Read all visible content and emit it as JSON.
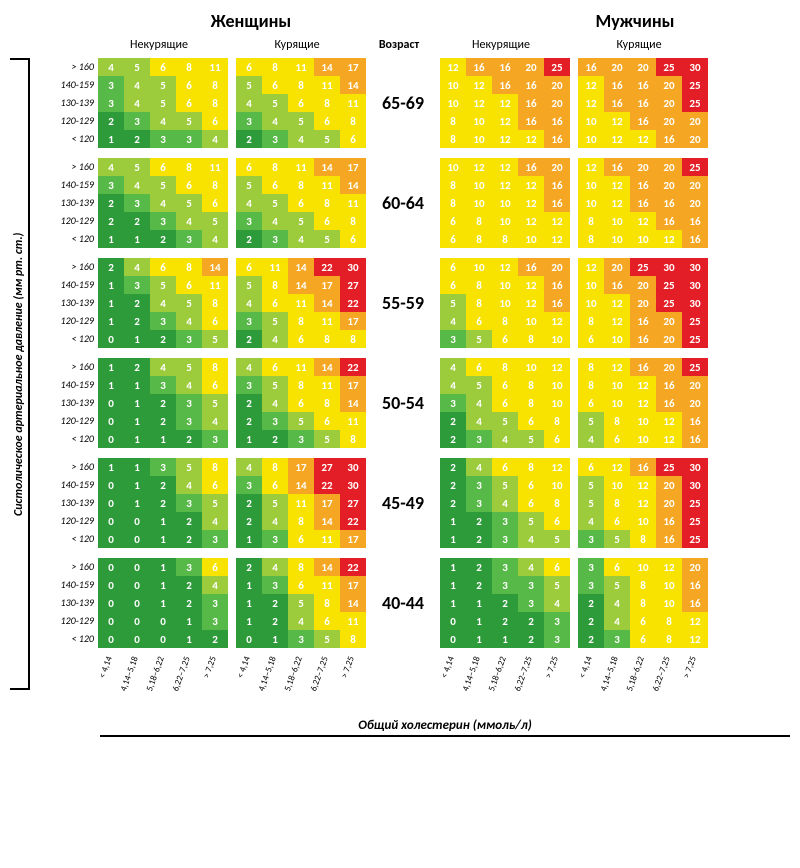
{
  "labels": {
    "women": "Женщины",
    "men": "Мужчины",
    "nonsmokers": "Некурящие",
    "smokers": "Курящие",
    "age": "Возраст",
    "y_axis": "Систолическое артериальное давление (мм рт. ст.)",
    "x_axis": "Общий холестерин (ммоль/л)"
  },
  "bp_rows": [
    "> 160",
    "140-159",
    "130-139",
    "120-129",
    "< 120"
  ],
  "chol_cols": [
    "< 4,14",
    "4,14–5,18",
    "5,18–6,22",
    "6,22–7,25",
    "> 7,25"
  ],
  "age_bands": [
    "65-69",
    "60-64",
    "55-59",
    "50-54",
    "45-49",
    "40-44"
  ],
  "colors": {
    "dark_green": "#2e9b3b",
    "green": "#57b947",
    "light_green": "#9ccc3c",
    "yellow": "#f8e300",
    "orange": "#f5a623",
    "red": "#e41e26",
    "text_color": "#ffffff"
  },
  "color_thresholds": [
    {
      "max": 2,
      "color": "dark_green"
    },
    {
      "max": 3,
      "color": "green"
    },
    {
      "max": 5,
      "color": "light_green"
    },
    {
      "max": 12,
      "color": "yellow"
    },
    {
      "max": 20,
      "color": "orange"
    },
    {
      "max": 999,
      "color": "red"
    }
  ],
  "cell_font_size": 11,
  "cell_font_weight": "bold",
  "data": {
    "65-69": {
      "women_nonsmoke": [
        [
          4,
          5,
          6,
          8,
          11
        ],
        [
          3,
          4,
          5,
          6,
          8
        ],
        [
          3,
          4,
          5,
          6,
          8
        ],
        [
          2,
          3,
          4,
          5,
          6
        ],
        [
          1,
          2,
          3,
          3,
          4
        ]
      ],
      "women_smoke": [
        [
          6,
          8,
          11,
          14,
          17
        ],
        [
          5,
          6,
          8,
          11,
          14
        ],
        [
          4,
          5,
          6,
          8,
          11
        ],
        [
          3,
          4,
          5,
          6,
          8
        ],
        [
          2,
          3,
          4,
          5,
          6
        ]
      ],
      "men_nonsmoke": [
        [
          12,
          16,
          16,
          20,
          25
        ],
        [
          10,
          12,
          16,
          16,
          20
        ],
        [
          10,
          12,
          12,
          16,
          20
        ],
        [
          8,
          10,
          12,
          16,
          16
        ],
        [
          8,
          10,
          12,
          12,
          16
        ]
      ],
      "men_smoke": [
        [
          16,
          20,
          20,
          25,
          30
        ],
        [
          12,
          16,
          16,
          20,
          25
        ],
        [
          12,
          16,
          16,
          20,
          25
        ],
        [
          10,
          12,
          16,
          20,
          20
        ],
        [
          10,
          12,
          12,
          16,
          20
        ]
      ]
    },
    "60-64": {
      "women_nonsmoke": [
        [
          4,
          5,
          6,
          8,
          11
        ],
        [
          3,
          4,
          5,
          6,
          8
        ],
        [
          2,
          3,
          4,
          5,
          6
        ],
        [
          2,
          2,
          3,
          4,
          5
        ],
        [
          1,
          1,
          2,
          3,
          4
        ]
      ],
      "women_smoke": [
        [
          6,
          8,
          11,
          14,
          17
        ],
        [
          5,
          6,
          8,
          11,
          14
        ],
        [
          4,
          5,
          6,
          8,
          11
        ],
        [
          3,
          4,
          5,
          6,
          8
        ],
        [
          2,
          3,
          4,
          5,
          6
        ]
      ],
      "men_nonsmoke": [
        [
          10,
          12,
          12,
          16,
          20
        ],
        [
          8,
          10,
          12,
          12,
          16
        ],
        [
          8,
          10,
          10,
          12,
          16
        ],
        [
          6,
          8,
          10,
          12,
          12
        ],
        [
          6,
          8,
          8,
          10,
          12
        ]
      ],
      "men_smoke": [
        [
          12,
          16,
          20,
          20,
          25
        ],
        [
          10,
          12,
          16,
          20,
          20
        ],
        [
          10,
          12,
          16,
          16,
          20
        ],
        [
          8,
          10,
          12,
          16,
          16
        ],
        [
          8,
          10,
          10,
          12,
          16
        ]
      ]
    },
    "55-59": {
      "women_nonsmoke": [
        [
          2,
          4,
          6,
          8,
          14
        ],
        [
          1,
          3,
          5,
          6,
          11
        ],
        [
          1,
          2,
          4,
          5,
          8
        ],
        [
          1,
          2,
          3,
          4,
          6
        ],
        [
          0,
          1,
          2,
          3,
          5
        ]
      ],
      "women_smoke": [
        [
          6,
          11,
          14,
          22,
          30
        ],
        [
          5,
          8,
          14,
          17,
          27
        ],
        [
          4,
          6,
          11,
          14,
          22
        ],
        [
          3,
          5,
          8,
          11,
          17
        ],
        [
          2,
          4,
          6,
          8,
          8
        ]
      ],
      "men_nonsmoke": [
        [
          6,
          10,
          12,
          16,
          20
        ],
        [
          6,
          8,
          10,
          12,
          16
        ],
        [
          5,
          8,
          10,
          12,
          16
        ],
        [
          4,
          6,
          8,
          10,
          12
        ],
        [
          3,
          5,
          6,
          8,
          10
        ]
      ],
      "men_smoke": [
        [
          12,
          20,
          25,
          30,
          30
        ],
        [
          10,
          16,
          20,
          25,
          30
        ],
        [
          10,
          12,
          20,
          25,
          30
        ],
        [
          8,
          12,
          16,
          20,
          25
        ],
        [
          6,
          10,
          16,
          20,
          25
        ]
      ]
    },
    "50-54": {
      "women_nonsmoke": [
        [
          1,
          2,
          4,
          5,
          8
        ],
        [
          1,
          1,
          3,
          4,
          6
        ],
        [
          0,
          1,
          2,
          3,
          5
        ],
        [
          0,
          1,
          2,
          3,
          4
        ],
        [
          0,
          1,
          1,
          2,
          3
        ]
      ],
      "women_smoke": [
        [
          4,
          6,
          11,
          14,
          22
        ],
        [
          3,
          5,
          8,
          11,
          17
        ],
        [
          2,
          4,
          6,
          8,
          14
        ],
        [
          2,
          3,
          5,
          6,
          11
        ],
        [
          1,
          2,
          3,
          5,
          8
        ]
      ],
      "men_nonsmoke": [
        [
          4,
          6,
          8,
          10,
          12
        ],
        [
          4,
          5,
          6,
          8,
          10
        ],
        [
          3,
          4,
          6,
          8,
          10
        ],
        [
          2,
          4,
          5,
          6,
          8
        ],
        [
          2,
          3,
          4,
          5,
          6
        ]
      ],
      "men_smoke": [
        [
          8,
          12,
          16,
          20,
          25
        ],
        [
          8,
          10,
          12,
          16,
          20
        ],
        [
          6,
          10,
          12,
          16,
          20
        ],
        [
          5,
          8,
          10,
          12,
          16
        ],
        [
          4,
          6,
          10,
          12,
          16
        ]
      ]
    },
    "45-49": {
      "women_nonsmoke": [
        [
          1,
          1,
          3,
          5,
          8
        ],
        [
          0,
          1,
          2,
          4,
          6
        ],
        [
          0,
          1,
          2,
          3,
          5
        ],
        [
          0,
          0,
          1,
          2,
          4
        ],
        [
          0,
          0,
          1,
          2,
          3
        ]
      ],
      "women_smoke": [
        [
          4,
          8,
          17,
          27,
          30
        ],
        [
          3,
          6,
          14,
          22,
          30
        ],
        [
          2,
          5,
          11,
          17,
          27
        ],
        [
          2,
          4,
          8,
          14,
          22
        ],
        [
          1,
          3,
          6,
          11,
          17
        ]
      ],
      "men_nonsmoke": [
        [
          2,
          4,
          6,
          8,
          12
        ],
        [
          2,
          3,
          5,
          6,
          10
        ],
        [
          2,
          3,
          4,
          6,
          8
        ],
        [
          1,
          2,
          3,
          5,
          6
        ],
        [
          1,
          2,
          3,
          4,
          5
        ]
      ],
      "men_smoke": [
        [
          6,
          12,
          16,
          25,
          30
        ],
        [
          5,
          10,
          12,
          20,
          30
        ],
        [
          5,
          8,
          12,
          20,
          25
        ],
        [
          4,
          6,
          10,
          16,
          25
        ],
        [
          3,
          5,
          8,
          16,
          25
        ]
      ]
    },
    "40-44": {
      "women_nonsmoke": [
        [
          0,
          0,
          1,
          3,
          6
        ],
        [
          0,
          0,
          1,
          2,
          4
        ],
        [
          0,
          0,
          1,
          2,
          3
        ],
        [
          0,
          0,
          0,
          1,
          3
        ],
        [
          0,
          0,
          0,
          1,
          2
        ]
      ],
      "women_smoke": [
        [
          2,
          4,
          8,
          14,
          22
        ],
        [
          1,
          3,
          6,
          11,
          17
        ],
        [
          1,
          2,
          5,
          8,
          14
        ],
        [
          1,
          2,
          4,
          6,
          11
        ],
        [
          0,
          1,
          3,
          5,
          8
        ]
      ],
      "men_nonsmoke": [
        [
          1,
          2,
          3,
          4,
          6
        ],
        [
          1,
          2,
          3,
          3,
          5
        ],
        [
          1,
          1,
          2,
          3,
          4
        ],
        [
          0,
          1,
          2,
          2,
          3
        ],
        [
          0,
          1,
          1,
          2,
          3
        ]
      ],
      "men_smoke": [
        [
          3,
          6,
          10,
          12,
          20
        ],
        [
          3,
          5,
          8,
          10,
          16
        ],
        [
          2,
          4,
          8,
          10,
          16
        ],
        [
          2,
          4,
          6,
          8,
          12
        ],
        [
          2,
          3,
          6,
          8,
          12
        ]
      ]
    }
  }
}
